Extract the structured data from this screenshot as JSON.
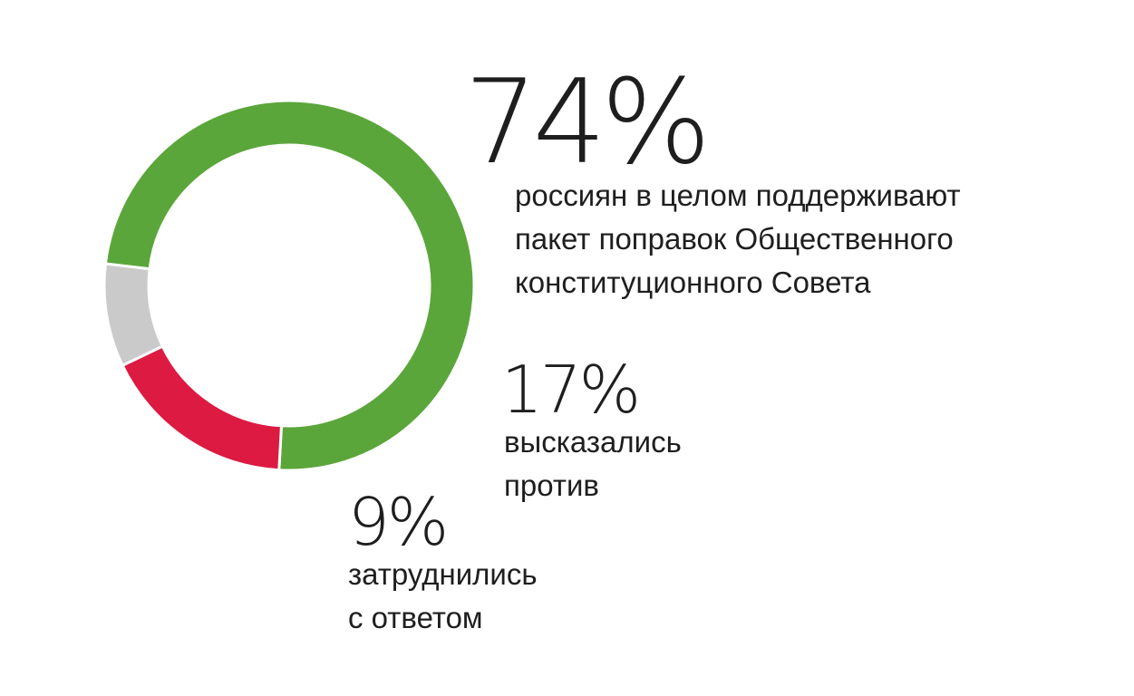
{
  "chart_data": {
    "type": "pie",
    "variant": "donut",
    "title": "",
    "slices": [
      {
        "label": "россиян в целом поддерживают пакет поправок Общественного конституционного Совета",
        "value": 74,
        "value_text": "74%",
        "lines": [
          "россиян в целом поддерживают",
          "пакет поправок Общественного",
          "конституционного Совета"
        ],
        "color": "#5aa63a"
      },
      {
        "label": "высказались против",
        "value": 17,
        "value_text": "17%",
        "lines": [
          "высказались",
          "против"
        ],
        "color": "#dc1a42"
      },
      {
        "label": "затруднились с ответом",
        "value": 9,
        "value_text": "9%",
        "lines": [
          "затруднились",
          "с ответом"
        ],
        "color": "#cacaca"
      }
    ],
    "legend": "none"
  }
}
